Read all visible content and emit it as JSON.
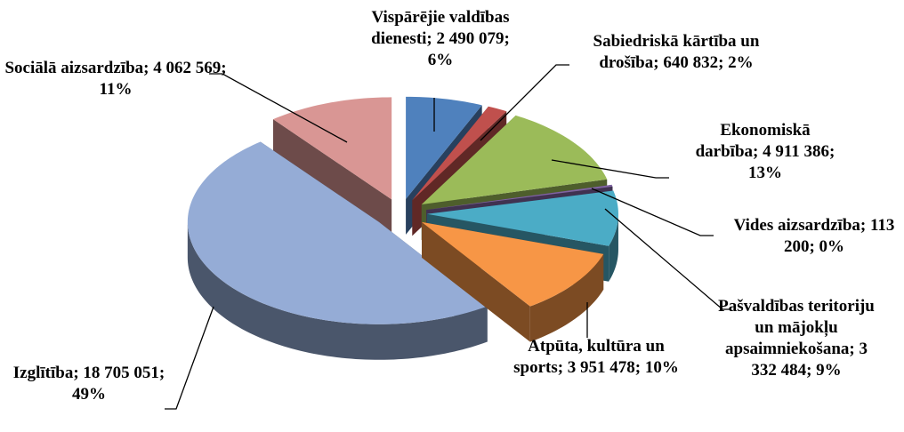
{
  "chart_data": {
    "type": "pie",
    "categories": [
      "Vispārējie valdības dienesti",
      "Sabiedriskā kārtība un drošība",
      "Ekonomiskā darbība",
      "Vides aizsardzība",
      "Pašvaldības teritoriju un mājokļu apsaimniekošana",
      "Atpūta, kultūra un sports",
      "Izglītība",
      "Sociālā aizsardzība"
    ],
    "values": [
      2490079,
      640832,
      4911386,
      113200,
      3332484,
      3951478,
      18705051,
      4062569
    ],
    "value_labels": [
      "Vispārējie valdības dienesti; 2 490 079; 6%",
      "Sabiedriskā kārtība un drošība; 640 832; 2%",
      "Ekonomiskā darbība; 4 911 386; 13%",
      "Vides aizsardzība; 113 200; 0%",
      "Pašvaldības teritoriju un mājokļu apsaimniekošana; 3 332 484; 9%",
      "Atpūta, kultūra un sports; 3 951 478; 10%",
      "Izglītība; 18 705 051; 49%",
      "Sociālā aizsardzība; 4 062 569; 11%"
    ],
    "colors": [
      "#4f81bd",
      "#c0504d",
      "#9bbb59",
      "#8064a2",
      "#4bacc6",
      "#f79646",
      "#95acd6",
      "#d99694"
    ]
  }
}
